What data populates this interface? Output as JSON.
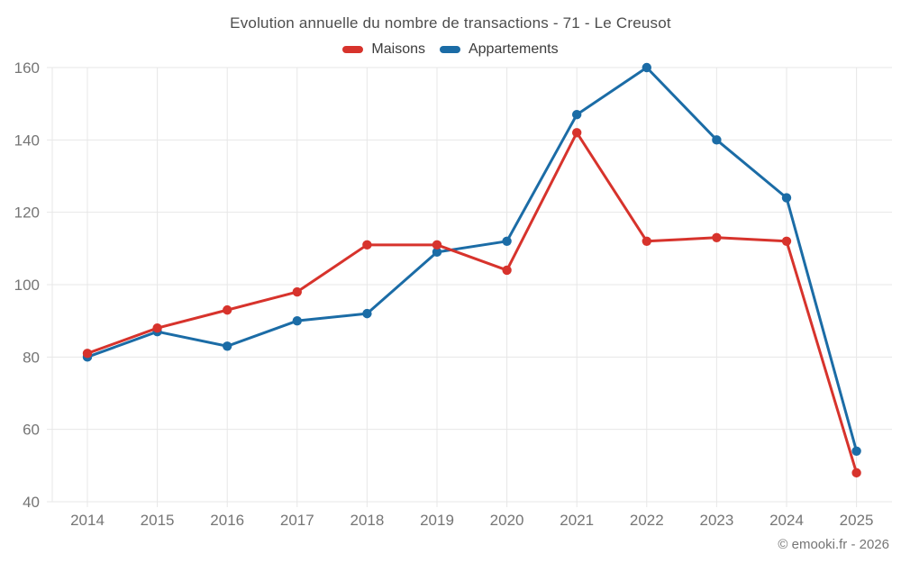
{
  "page": {
    "footer": "© emooki.fr - 2026"
  },
  "chart_data": {
    "type": "line",
    "title": "Evolution annuelle du nombre de transactions - 71 - Le Creusot",
    "xlabel": "",
    "ylabel": "",
    "categories": [
      "2014",
      "2015",
      "2016",
      "2017",
      "2018",
      "2019",
      "2020",
      "2021",
      "2022",
      "2023",
      "2024",
      "2025"
    ],
    "series": [
      {
        "name": "Maisons",
        "color": "#d7332c",
        "values": [
          81,
          88,
          93,
          98,
          111,
          111,
          104,
          142,
          112,
          113,
          112,
          48
        ]
      },
      {
        "name": "Appartements",
        "color": "#1b6ca6",
        "values": [
          80,
          87,
          83,
          90,
          92,
          109,
          112,
          147,
          160,
          140,
          124,
          54
        ]
      }
    ],
    "ylim": [
      40,
      160
    ],
    "yticks": [
      40,
      60,
      80,
      100,
      120,
      140,
      160
    ],
    "grid": true,
    "legend_position": "top"
  },
  "colors": {
    "background": "#ffffff",
    "grid": "#e7e7e7",
    "tick_text": "#757575",
    "title_text": "#4d4d4d",
    "legend_text": "#3c3c3c",
    "footer_text": "#757575"
  }
}
